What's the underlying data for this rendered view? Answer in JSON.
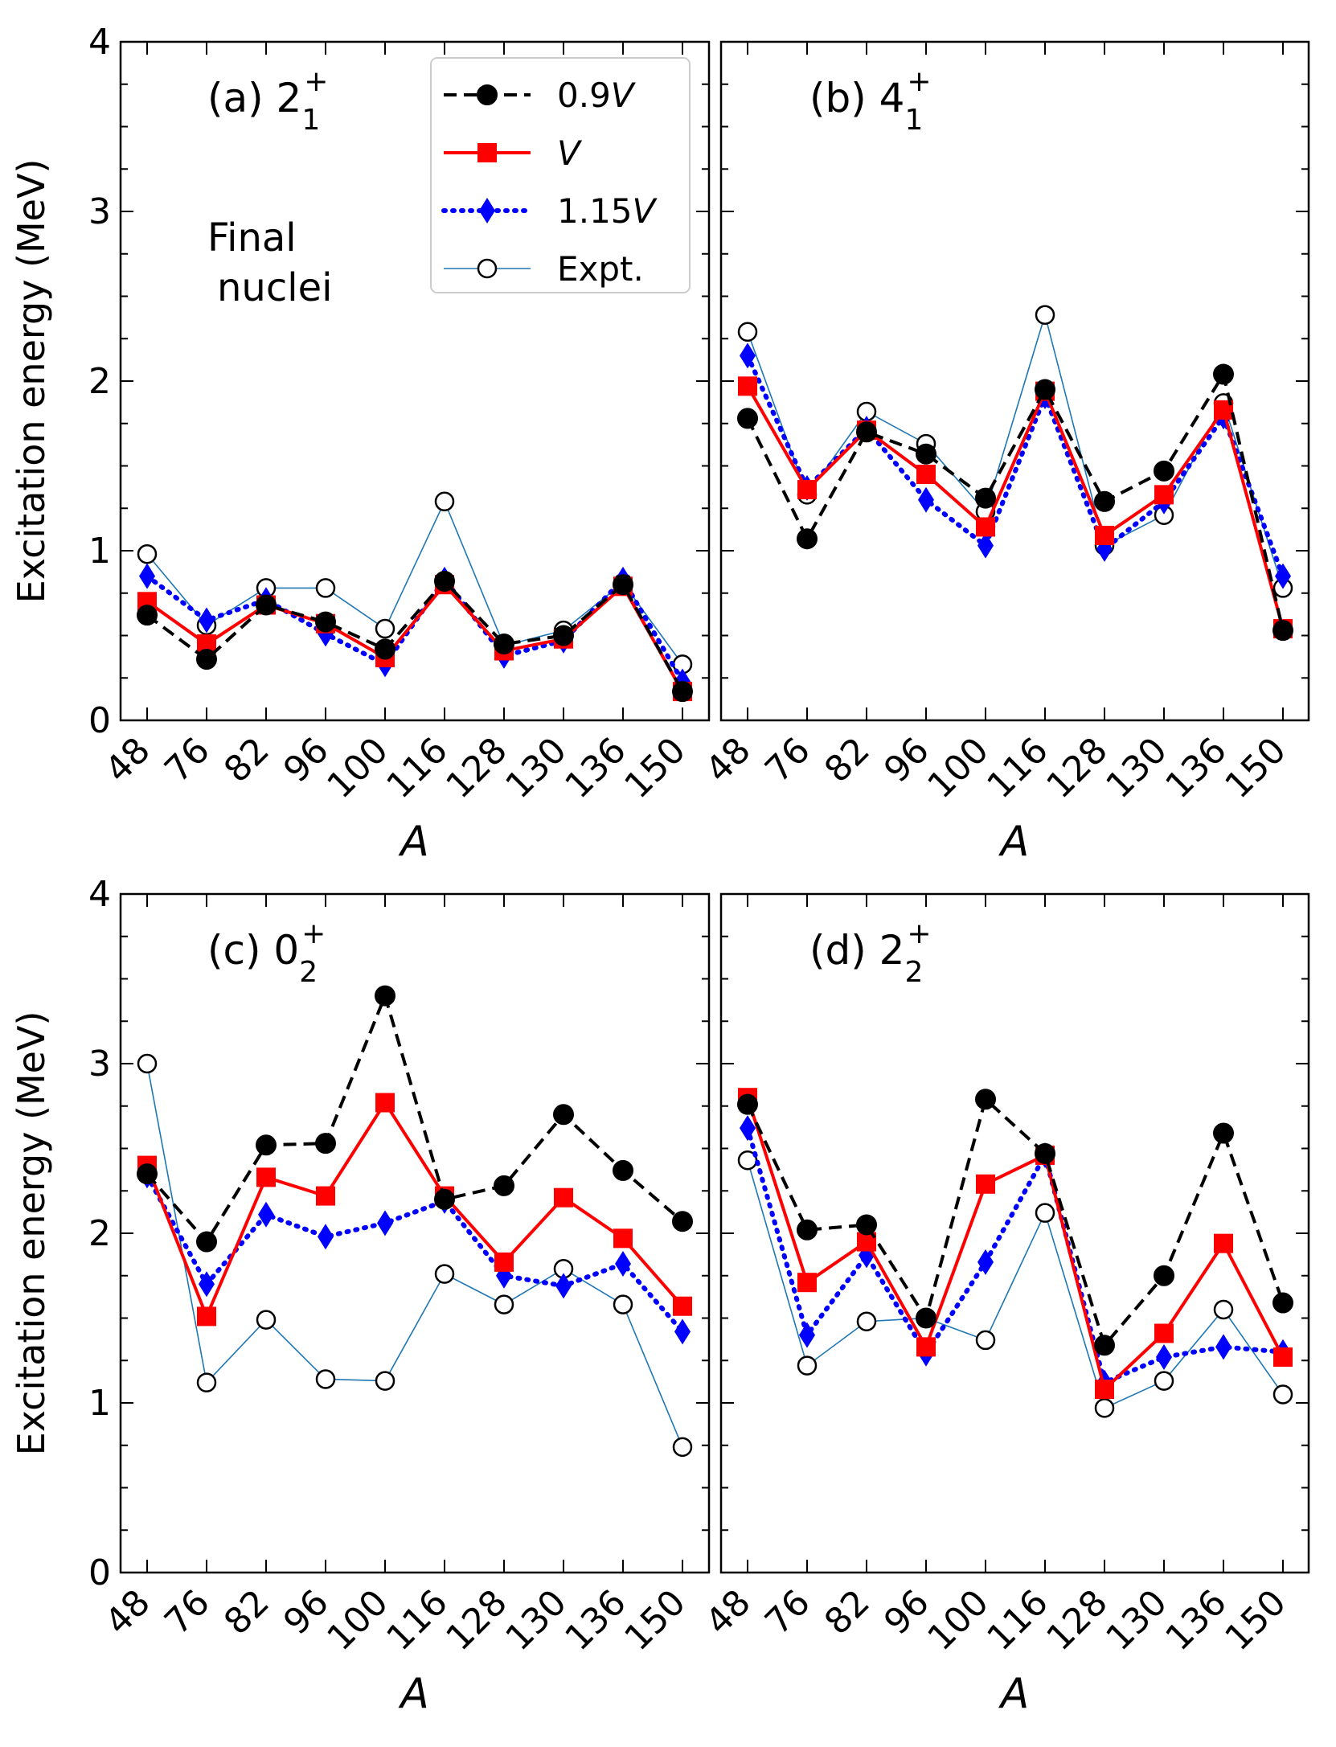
{
  "chart_data": [
    {
      "type": "line",
      "panel_label": "(a) 2",
      "panel_sub": "1",
      "panel_sup": "+",
      "annotation_lines": [
        "Final",
        "nuclei"
      ],
      "xlabel": "A",
      "ylabel": "Excitation energy (MeV)",
      "ylim": [
        0,
        4
      ],
      "yticks": [
        "0",
        "1",
        "2",
        "3",
        "4"
      ],
      "categories": [
        "48",
        "76",
        "82",
        "96",
        "100",
        "116",
        "128",
        "130",
        "136",
        "150"
      ],
      "series": [
        {
          "name": "0.9V",
          "values": [
            0.62,
            0.36,
            0.68,
            0.58,
            0.42,
            0.82,
            0.45,
            0.5,
            0.8,
            0.17
          ]
        },
        {
          "name": "V",
          "values": [
            0.7,
            0.45,
            0.68,
            0.57,
            0.37,
            0.8,
            0.41,
            0.48,
            0.79,
            0.17
          ]
        },
        {
          "name": "1.15V",
          "values": [
            0.85,
            0.59,
            0.71,
            0.51,
            0.33,
            0.83,
            0.38,
            0.47,
            0.83,
            0.23
          ]
        },
        {
          "name": "Expt.",
          "values": [
            0.98,
            0.56,
            0.78,
            0.78,
            0.54,
            1.29,
            0.44,
            0.53,
            0.81,
            0.33
          ]
        }
      ]
    },
    {
      "type": "line",
      "panel_label": "(b) 4",
      "panel_sub": "1",
      "panel_sup": "+",
      "xlabel": "A",
      "ylabel": "",
      "ylim": [
        0,
        4
      ],
      "categories": [
        "48",
        "76",
        "82",
        "96",
        "100",
        "116",
        "128",
        "130",
        "136",
        "150"
      ],
      "series": [
        {
          "name": "0.9V",
          "values": [
            1.78,
            1.07,
            1.7,
            1.57,
            1.31,
            1.95,
            1.29,
            1.47,
            2.04,
            0.53
          ]
        },
        {
          "name": "V",
          "values": [
            1.97,
            1.36,
            1.71,
            1.45,
            1.14,
            1.94,
            1.09,
            1.33,
            1.83,
            0.54
          ]
        },
        {
          "name": "1.15V",
          "values": [
            2.15,
            1.37,
            1.72,
            1.3,
            1.03,
            1.91,
            1.01,
            1.29,
            1.79,
            0.85
          ]
        },
        {
          "name": "Expt.",
          "values": [
            2.29,
            1.33,
            1.82,
            1.63,
            1.23,
            2.39,
            1.03,
            1.21,
            1.87,
            0.78
          ]
        }
      ]
    },
    {
      "type": "line",
      "panel_label": "(c) 0",
      "panel_sub": "2",
      "panel_sup": "+",
      "xlabel": "A",
      "ylabel": "Excitation energy (MeV)",
      "ylim": [
        0,
        4
      ],
      "yticks": [
        "0",
        "1",
        "2",
        "3",
        "4"
      ],
      "categories": [
        "48",
        "76",
        "82",
        "96",
        "100",
        "116",
        "128",
        "130",
        "136",
        "150"
      ],
      "series": [
        {
          "name": "0.9V",
          "values": [
            2.35,
            1.95,
            2.52,
            2.53,
            3.4,
            2.2,
            2.28,
            2.7,
            2.37,
            2.07
          ]
        },
        {
          "name": "V",
          "values": [
            2.4,
            1.51,
            2.33,
            2.22,
            2.77,
            2.22,
            1.83,
            2.21,
            1.97,
            1.57
          ]
        },
        {
          "name": "1.15V",
          "values": [
            2.34,
            1.7,
            2.11,
            1.98,
            2.06,
            2.19,
            1.75,
            1.69,
            1.82,
            1.42
          ]
        },
        {
          "name": "Expt.",
          "values": [
            3.0,
            1.12,
            1.49,
            1.14,
            1.13,
            1.76,
            1.58,
            1.79,
            1.58,
            0.74
          ]
        }
      ]
    },
    {
      "type": "line",
      "panel_label": "(d) 2",
      "panel_sub": "2",
      "panel_sup": "+",
      "xlabel": "A",
      "ylabel": "",
      "ylim": [
        0,
        4
      ],
      "categories": [
        "48",
        "76",
        "82",
        "96",
        "100",
        "116",
        "128",
        "130",
        "136",
        "150"
      ],
      "series": [
        {
          "name": "0.9V",
          "values": [
            2.76,
            2.02,
            2.05,
            1.5,
            2.79,
            2.47,
            1.34,
            1.75,
            2.59,
            1.59
          ]
        },
        {
          "name": "V",
          "values": [
            2.8,
            1.71,
            1.95,
            1.33,
            2.29,
            2.46,
            1.08,
            1.41,
            1.94,
            1.27
          ]
        },
        {
          "name": "1.15V",
          "values": [
            2.62,
            1.4,
            1.87,
            1.29,
            1.83,
            2.46,
            1.12,
            1.27,
            1.33,
            1.3
          ]
        },
        {
          "name": "Expt.",
          "values": [
            2.43,
            1.22,
            1.48,
            1.5,
            1.37,
            2.12,
            0.97,
            1.13,
            1.55,
            1.05
          ]
        }
      ]
    }
  ],
  "legend": {
    "entries": [
      {
        "key": "0.9V",
        "prefix": "0.9",
        "italic": "V"
      },
      {
        "key": "V",
        "prefix": "",
        "italic": "V"
      },
      {
        "key": "1.15V",
        "prefix": "1.15",
        "italic": "V"
      },
      {
        "key": "Expt.",
        "prefix": "Expt.",
        "italic": ""
      }
    ]
  },
  "styles": {
    "0.9V": {
      "color": "#000000",
      "marker": "circle",
      "dash": "dashed"
    },
    "V": {
      "color": "#ff0000",
      "marker": "square",
      "dash": "solid"
    },
    "1.15V": {
      "color": "#0000ff",
      "marker": "diamond",
      "dash": "dotted"
    },
    "Expt.": {
      "color": "#1f77b4",
      "marker": "open-circle",
      "dash": "thin-solid"
    }
  }
}
